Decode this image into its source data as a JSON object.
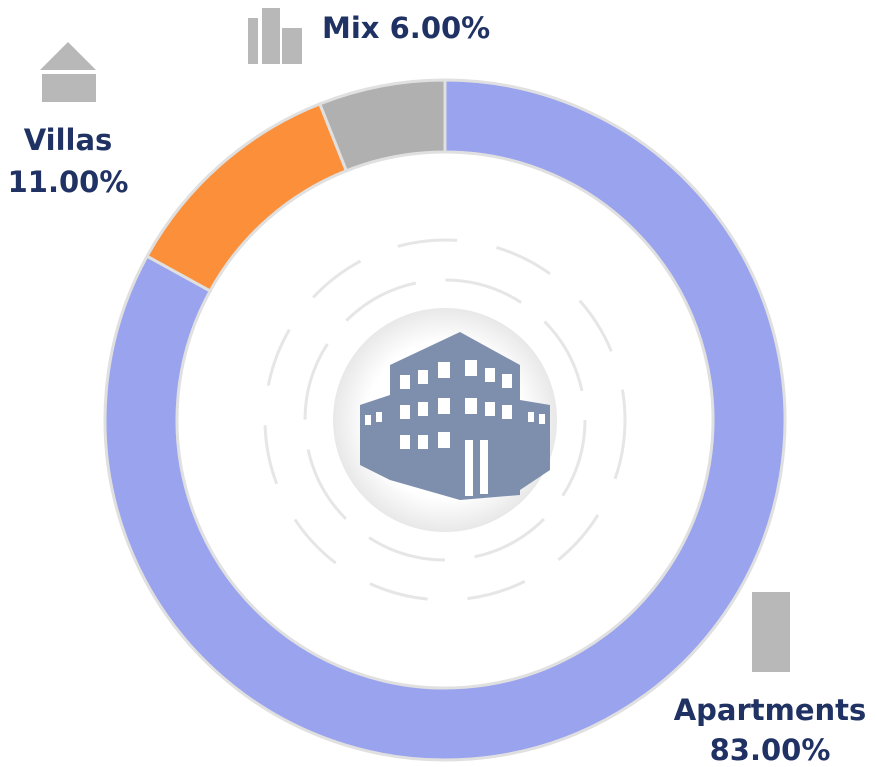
{
  "chart_data": {
    "type": "donut",
    "categories": [
      "Apartments",
      "Villas",
      "Mix"
    ],
    "values": [
      83,
      11,
      6
    ],
    "value_labels": [
      "83.00%",
      "11.00%",
      "6.00%"
    ],
    "colors": [
      "#99a3ee",
      "#fb8f3a",
      "#b0b0b0"
    ]
  }
}
